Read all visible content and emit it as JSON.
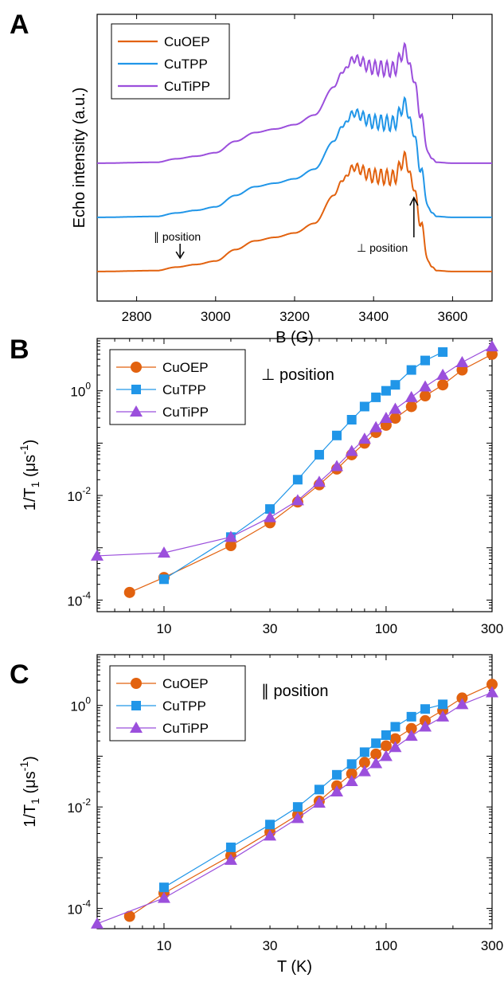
{
  "colors": {
    "CuOEP": "#e2620f",
    "CuTPP": "#2196e8",
    "CuTiPP": "#9b4fdc"
  },
  "chart_data": [
    {
      "panel": "A",
      "type": "line",
      "xlabel": "B (G)",
      "ylabel": "Echo intensity (a.u.)",
      "xlim": [
        2700,
        3700
      ],
      "xticks": [
        "2800",
        "3000",
        "3200",
        "3400",
        "3600"
      ],
      "xtick_values": [
        2800,
        3000,
        3200,
        3400,
        3600
      ],
      "legend_position": "top-left",
      "series": [
        {
          "name": "CuOEP",
          "color": "#e2620f",
          "offset": 0,
          "x": [
            2700,
            2850,
            2900,
            2950,
            3000,
            3050,
            3100,
            3150,
            3200,
            3250,
            3300,
            3320,
            3350,
            3400,
            3450,
            3480,
            3500,
            3520,
            3540,
            3560,
            3600,
            3700
          ],
          "y": [
            0.01,
            0.02,
            0.06,
            0.09,
            0.13,
            0.26,
            0.36,
            0.4,
            0.45,
            0.56,
            0.88,
            1.05,
            1.2,
            1.1,
            1.08,
            1.3,
            1.0,
            0.55,
            0.1,
            0.02,
            0.01,
            0.01
          ]
        },
        {
          "name": "CuTPP",
          "color": "#2196e8",
          "offset": 0.5,
          "x": [
            2700,
            2850,
            2900,
            2950,
            3000,
            3050,
            3100,
            3150,
            3200,
            3250,
            3300,
            3320,
            3350,
            3400,
            3450,
            3480,
            3500,
            3520,
            3540,
            3560,
            3600,
            3700
          ],
          "y": [
            0.01,
            0.02,
            0.06,
            0.09,
            0.13,
            0.26,
            0.36,
            0.4,
            0.45,
            0.56,
            0.88,
            1.05,
            1.2,
            1.1,
            1.08,
            1.3,
            1.0,
            0.55,
            0.1,
            0.02,
            0.01,
            0.01
          ]
        },
        {
          "name": "CuTiPP",
          "color": "#9b4fdc",
          "offset": 1.0,
          "x": [
            2700,
            2850,
            2900,
            2950,
            3000,
            3050,
            3100,
            3150,
            3200,
            3250,
            3300,
            3320,
            3350,
            3400,
            3450,
            3480,
            3500,
            3520,
            3540,
            3560,
            3600,
            3700
          ],
          "y": [
            0.01,
            0.02,
            0.06,
            0.09,
            0.13,
            0.26,
            0.36,
            0.4,
            0.45,
            0.56,
            0.88,
            1.05,
            1.2,
            1.1,
            1.08,
            1.3,
            1.0,
            0.55,
            0.1,
            0.02,
            0.01,
            0.01
          ]
        }
      ],
      "annotations": [
        {
          "text": "∥ position",
          "x": 2910
        },
        {
          "text": "⊥ position",
          "x": 3490
        }
      ]
    },
    {
      "panel": "B",
      "type": "scatter",
      "xscale": "log",
      "yscale": "log",
      "xlim": [
        5,
        300
      ],
      "ylim": [
        6e-05,
        10
      ],
      "xlabel": "",
      "ylabel": "1/T1 (μs-1)",
      "xticks": [
        "10",
        "30",
        "100",
        "300"
      ],
      "xtick_values": [
        10,
        30,
        100,
        300
      ],
      "yticks": [
        "10-4",
        "10-2",
        "100"
      ],
      "ytick_values": [
        0.0001,
        0.01,
        1
      ],
      "legend_position": "top-left",
      "annotation": "⊥ position",
      "series": [
        {
          "name": "CuOEP",
          "marker": "circle",
          "color": "#e2620f",
          "x": [
            7,
            10,
            20,
            30,
            40,
            50,
            60,
            70,
            80,
            90,
            100,
            110,
            130,
            150,
            180,
            220,
            300
          ],
          "y": [
            0.00014,
            0.00027,
            0.0011,
            0.003,
            0.0075,
            0.016,
            0.032,
            0.06,
            0.1,
            0.16,
            0.22,
            0.3,
            0.5,
            0.8,
            1.3,
            2.5,
            5.0
          ]
        },
        {
          "name": "CuTPP",
          "marker": "square",
          "color": "#2196e8",
          "x": [
            10,
            20,
            30,
            40,
            50,
            60,
            70,
            80,
            90,
            100,
            110,
            130,
            150,
            180
          ],
          "y": [
            0.00025,
            0.0016,
            0.0055,
            0.02,
            0.06,
            0.14,
            0.28,
            0.5,
            0.75,
            1.0,
            1.3,
            2.5,
            3.8,
            5.5
          ]
        },
        {
          "name": "CuTiPP",
          "marker": "triangle",
          "color": "#9b4fdc",
          "x": [
            5,
            10,
            20,
            30,
            40,
            50,
            60,
            70,
            80,
            90,
            100,
            110,
            130,
            150,
            180,
            220,
            300
          ],
          "y": [
            0.0007,
            0.0008,
            0.0016,
            0.0038,
            0.008,
            0.018,
            0.036,
            0.07,
            0.12,
            0.2,
            0.3,
            0.45,
            0.75,
            1.2,
            2.0,
            3.5,
            7.0
          ]
        }
      ]
    },
    {
      "panel": "C",
      "type": "scatter",
      "xscale": "log",
      "yscale": "log",
      "xlim": [
        5,
        300
      ],
      "ylim": [
        4e-05,
        10
      ],
      "xlabel": "T (K)",
      "ylabel": "1/T1 (μs-1)",
      "xticks": [
        "10",
        "30",
        "100",
        "300"
      ],
      "xtick_values": [
        10,
        30,
        100,
        300
      ],
      "yticks": [
        "10-4",
        "10-2",
        "100"
      ],
      "ytick_values": [
        0.0001,
        0.01,
        1
      ],
      "legend_position": "top-left",
      "annotation": "∥ position",
      "series": [
        {
          "name": "CuOEP",
          "marker": "circle",
          "color": "#e2620f",
          "x": [
            7,
            10,
            20,
            30,
            40,
            50,
            60,
            70,
            80,
            90,
            100,
            110,
            130,
            150,
            180,
            220,
            300
          ],
          "y": [
            7e-05,
            0.0002,
            0.0011,
            0.0032,
            0.007,
            0.013,
            0.026,
            0.045,
            0.075,
            0.11,
            0.16,
            0.22,
            0.35,
            0.5,
            0.8,
            1.4,
            2.6
          ]
        },
        {
          "name": "CuTPP",
          "marker": "square",
          "color": "#2196e8",
          "x": [
            10,
            20,
            30,
            40,
            50,
            60,
            70,
            80,
            90,
            100,
            110,
            130,
            150,
            180
          ],
          "y": [
            0.00026,
            0.0016,
            0.0045,
            0.01,
            0.022,
            0.043,
            0.07,
            0.12,
            0.18,
            0.26,
            0.38,
            0.6,
            0.85,
            1.05
          ]
        },
        {
          "name": "CuTiPP",
          "marker": "triangle",
          "color": "#9b4fdc",
          "x": [
            5,
            10,
            20,
            30,
            40,
            50,
            60,
            70,
            80,
            90,
            100,
            110,
            130,
            150,
            180,
            220,
            300
          ],
          "y": [
            5e-05,
            0.00016,
            0.0009,
            0.0027,
            0.006,
            0.012,
            0.02,
            0.032,
            0.05,
            0.072,
            0.1,
            0.15,
            0.25,
            0.38,
            0.6,
            1.05,
            1.8
          ]
        }
      ]
    }
  ]
}
